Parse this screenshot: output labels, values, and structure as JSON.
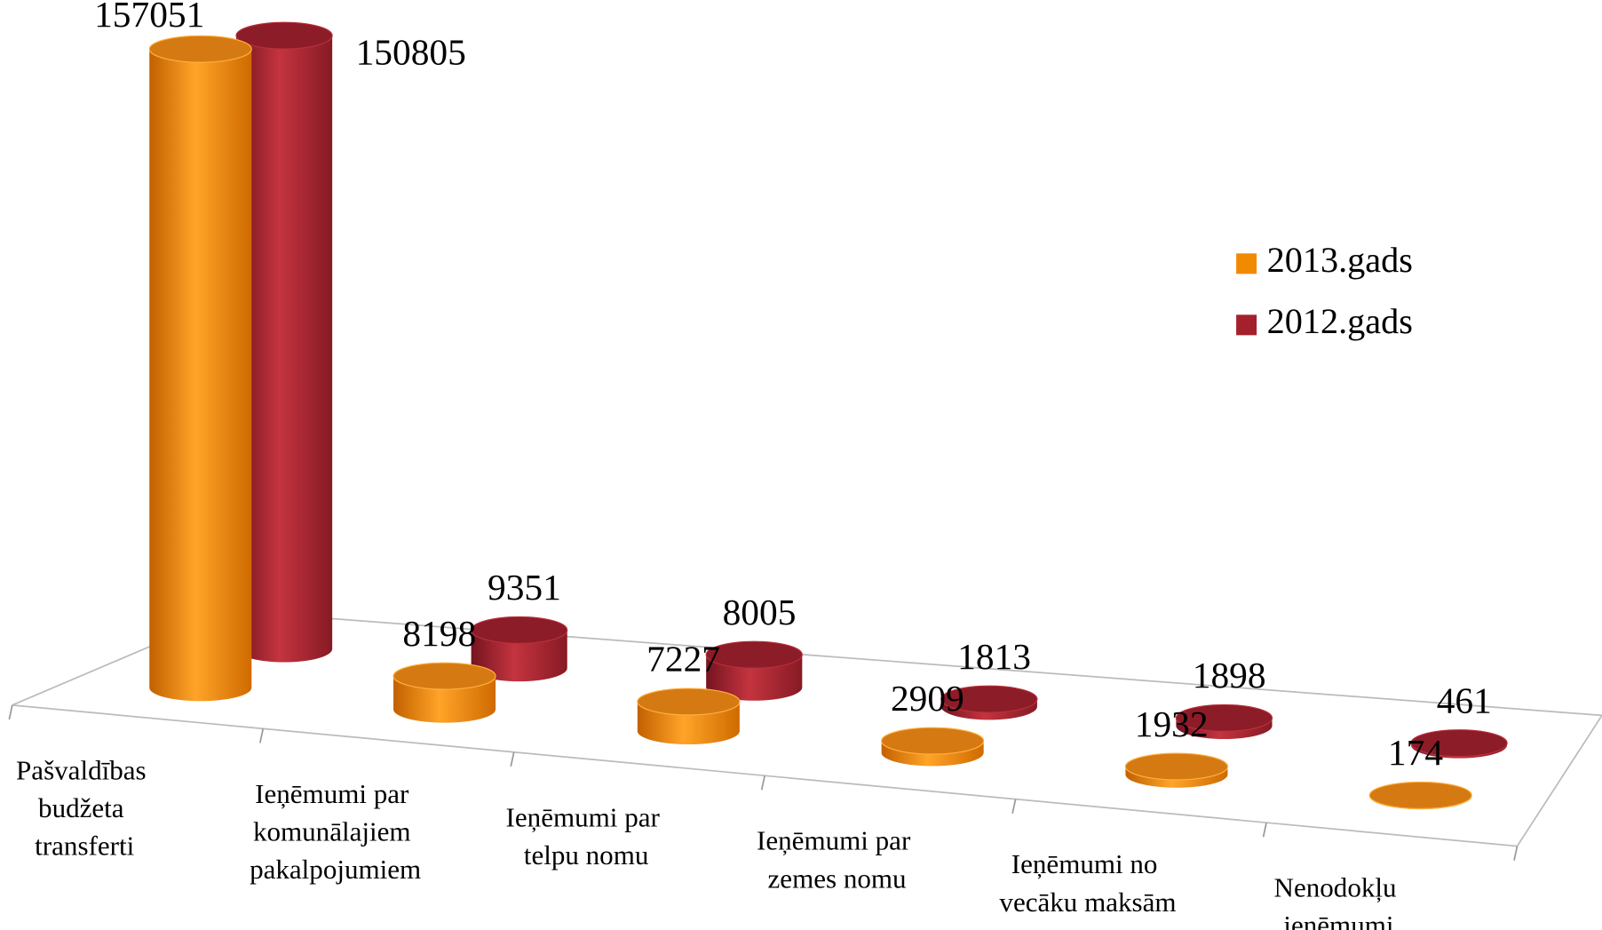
{
  "chart_data": {
    "type": "bar3d",
    "categories": [
      "Pašvaldības budžeta transferti",
      "Ieņēmumi par komunālajiem pakalpojumiem",
      "Ieņēmumi par telpu nomu",
      "Ieņēmumi par zemes nomu",
      "Ieņēmumi no vecāku maksām",
      "Nenodokļu ieņēmumi"
    ],
    "series": [
      {
        "name": "2013.gads",
        "color": "#f28a00",
        "values": [
          157051,
          8198,
          7227,
          2909,
          1932,
          174
        ]
      },
      {
        "name": "2012.gads",
        "color": "#a3202c",
        "values": [
          150805,
          9351,
          8005,
          1813,
          1898,
          461
        ]
      }
    ],
    "legend": "right"
  }
}
